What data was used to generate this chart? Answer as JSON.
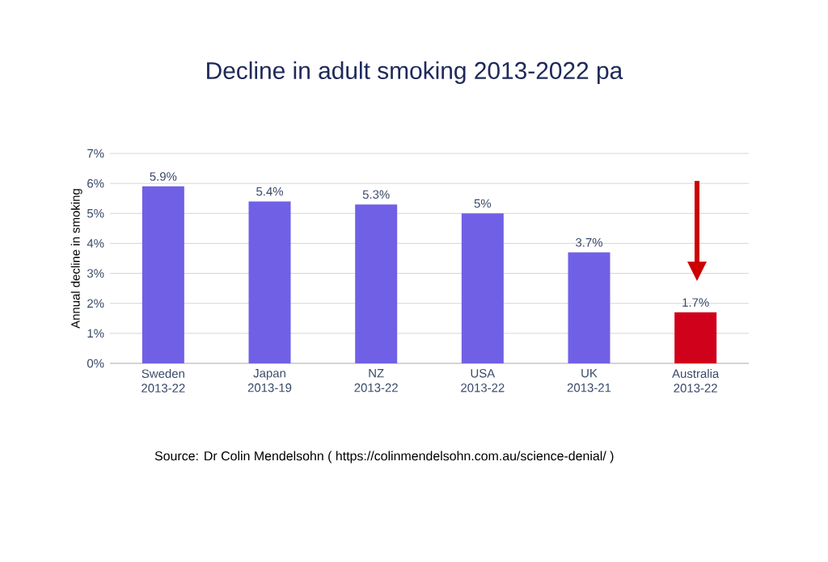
{
  "chart_data": {
    "type": "bar",
    "title": "Decline in adult smoking 2013-2022 pa",
    "ylabel": "Annual decline in smoking",
    "categories": [
      "Sweden 2013-22",
      "Japan 2013-19",
      "NZ 2013-22",
      "USA 2013-22",
      "UK 2013-21",
      "Australia 2013-22"
    ],
    "values": [
      5.9,
      5.4,
      5.3,
      5,
      3.7,
      1.7
    ],
    "colors": [
      "#7060e6",
      "#7060e6",
      "#7060e6",
      "#7060e6",
      "#7060e6",
      "#d0021b"
    ],
    "value_labels": [
      "5.9%",
      "5.4%",
      "5.3%",
      "5%",
      "3.7%",
      "1.7%"
    ],
    "ylim": [
      0,
      7
    ],
    "yticks": [
      {
        "value": 0,
        "label": "0%"
      },
      {
        "value": 1,
        "label": "1%"
      },
      {
        "value": 2,
        "label": "2%"
      },
      {
        "value": 3,
        "label": "3%"
      },
      {
        "value": 4,
        "label": "4%"
      },
      {
        "value": 5,
        "label": "5%"
      },
      {
        "value": 6,
        "label": "6%"
      },
      {
        "value": 7,
        "label": "7%"
      }
    ],
    "grid": "y",
    "annotations": [
      "Source:  Dr Colin Mendelsohn ( https://colinmendelsohn.com.au/science-denial/ )"
    ]
  }
}
